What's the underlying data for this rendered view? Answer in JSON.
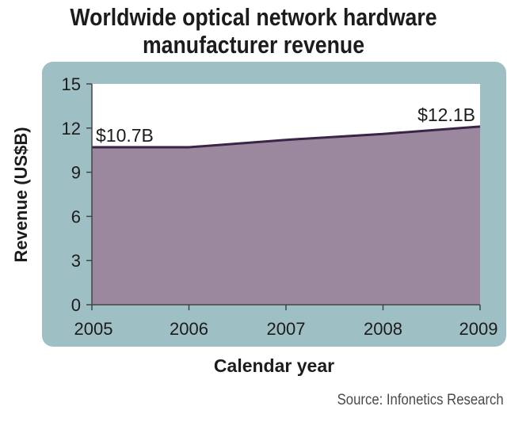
{
  "chart_data": {
    "type": "area",
    "title": "Worldwide optical network hardware manufacturer revenue",
    "xlabel": "Calendar year",
    "ylabel": "Revenue (US$B)",
    "x": [
      "2005",
      "2006",
      "2007",
      "2008",
      "2009"
    ],
    "y_ticks": [
      "0",
      "3",
      "6",
      "9",
      "12",
      "15"
    ],
    "ylim": [
      0,
      15
    ],
    "series": [
      {
        "values": [
          10.7,
          10.7,
          11.2,
          11.6,
          12.1
        ]
      }
    ],
    "annotations": [
      {
        "x": "2005",
        "text": "$10.7B"
      },
      {
        "x": "2009",
        "text": "$12.1B"
      }
    ],
    "source": "Source: Infonetics Research",
    "colors": {
      "frame": "#9ebfc3",
      "plot_bg": "#ffffff",
      "fill": "#9b889f",
      "line": "#3b2546",
      "text": "#1c1c1c"
    },
    "grid": false
  }
}
